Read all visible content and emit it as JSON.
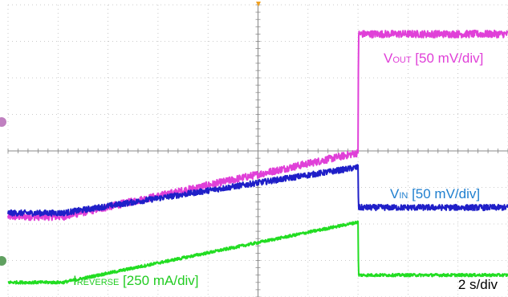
{
  "chart_data": {
    "type": "line",
    "title": "",
    "xlabel": "",
    "ylabel": "",
    "grid": true,
    "timebase_label": "2 s/div",
    "x_divisions": 10,
    "y_divisions": 8,
    "xlim": [
      0,
      10
    ],
    "ylim": [
      0,
      8
    ],
    "series": [
      {
        "key": "vout",
        "label_main": "V",
        "label_sub": "OUT",
        "label_scale": " [50 mV/div]",
        "color": "#e040d8",
        "x": [
          0,
          1.1,
          7.0,
          7.01,
          10
        ],
        "y": [
          2.2,
          2.2,
          3.95,
          7.2,
          7.2
        ],
        "noise": 0.1
      },
      {
        "key": "vin",
        "label_main": "V",
        "label_sub": "IN",
        "label_scale": " [50 mV/div]",
        "color": "#1f1fc8",
        "x": [
          0,
          1.1,
          7.0,
          7.01,
          10
        ],
        "y": [
          2.3,
          2.3,
          3.55,
          2.45,
          2.45
        ],
        "noise": 0.08
      },
      {
        "key": "ireverse",
        "label_main": "I",
        "label_sub": "REVERSE",
        "label_scale": " [250 mA/div]",
        "color": "#22dd22",
        "x": [
          0,
          1.1,
          7.0,
          7.01,
          10
        ],
        "y": [
          0.4,
          0.4,
          2.05,
          0.6,
          0.6
        ],
        "noise": 0.04
      }
    ]
  }
}
